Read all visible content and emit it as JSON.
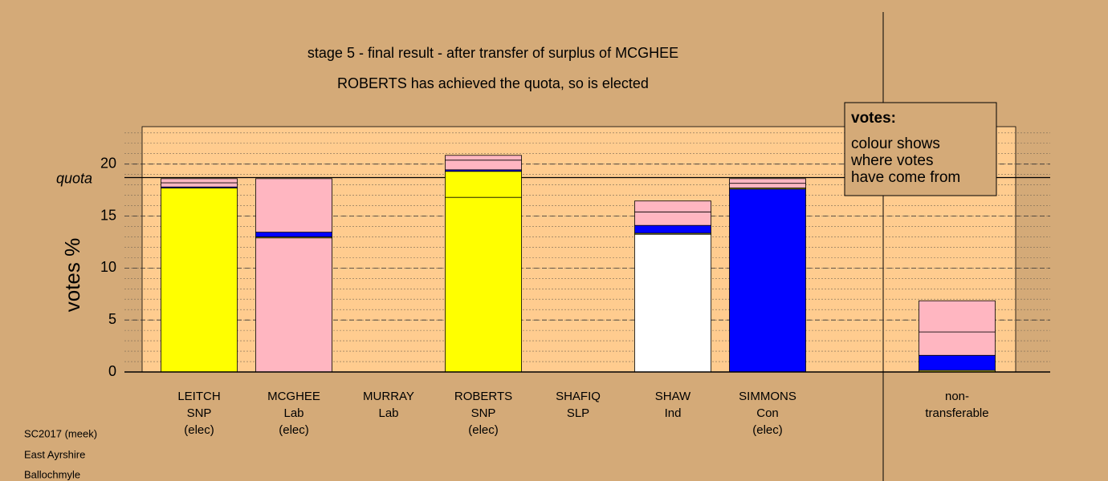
{
  "chart_data": {
    "type": "stacked_bar",
    "title": "stage 5 - final result - after transfer of surplus of MCGHEE",
    "subtitle": "ROBERTS has achieved the quota, so is elected",
    "y_label": "votes %",
    "ylim": [
      0,
      23.6
    ],
    "yticks": [
      0,
      5,
      10,
      15,
      20
    ],
    "minor_grid_step": 1,
    "quota": {
      "value": 18.7,
      "label": "quota"
    },
    "bars": [
      {
        "label": [
          "LEITCH",
          "SNP",
          "(elec)"
        ],
        "segments": [
          {
            "value": 17.7,
            "color": "#ffff00"
          },
          {
            "value": 0.1,
            "color": "#0000ff"
          },
          {
            "value": 0.4,
            "color": "#ffb6c1"
          },
          {
            "value": 0.4,
            "color": "#ffb6c1"
          }
        ]
      },
      {
        "label": [
          "MCGHEE",
          "Lab",
          "(elec)"
        ],
        "segments": [
          {
            "value": 12.9,
            "color": "#ffb6c1"
          },
          {
            "value": 0.1,
            "color": "#ffff00"
          },
          {
            "value": 0.45,
            "color": "#0000ff"
          },
          {
            "value": 5.15,
            "color": "#ffb6c1"
          }
        ]
      },
      {
        "label": [
          "MURRAY",
          "Lab"
        ],
        "segments": []
      },
      {
        "label": [
          "ROBERTS",
          "SNP",
          "(elec)"
        ],
        "segments": [
          {
            "value": 16.8,
            "color": "#ffff00"
          },
          {
            "value": 2.5,
            "color": "#ffff00"
          },
          {
            "value": 0.15,
            "color": "#0000ff"
          },
          {
            "value": 0.93,
            "color": "#ffb6c1"
          },
          {
            "value": 0.46,
            "color": "#ffb6c1"
          }
        ]
      },
      {
        "label": [
          "SHAFIQ",
          "SLP"
        ],
        "segments": []
      },
      {
        "label": [
          "SHAW",
          "Ind"
        ],
        "segments": [
          {
            "value": 13.25,
            "color": "#ffffff"
          },
          {
            "value": 0.1,
            "color": "#ffff00"
          },
          {
            "value": 0.75,
            "color": "#0000ff"
          },
          {
            "value": 1.3,
            "color": "#ffb6c1"
          },
          {
            "value": 1.05,
            "color": "#ffb6c1"
          }
        ]
      },
      {
        "label": [
          "SIMMONS",
          "Con",
          "(elec)"
        ],
        "segments": [
          {
            "value": 17.6,
            "color": "#0000ff"
          },
          {
            "value": 0.1,
            "color": "#ffff00"
          },
          {
            "value": 0.45,
            "color": "#ffb6c1"
          },
          {
            "value": 0.45,
            "color": "#ffb6c1"
          }
        ]
      }
    ],
    "nontransferable": {
      "label": [
        "non-",
        "transferable"
      ],
      "segments": [
        {
          "value": 0.15,
          "color": "#ffff00"
        },
        {
          "value": 1.45,
          "color": "#0000ff"
        },
        {
          "value": 2.25,
          "color": "#ffb6c1"
        },
        {
          "value": 3.0,
          "color": "#ffb6c1"
        }
      ]
    },
    "legend": {
      "title": "votes:",
      "lines": [
        "colour shows",
        "where votes",
        "have come from"
      ]
    },
    "footer": [
      "SC2017 (meek)",
      "East Ayrshire",
      "Ballochmyle"
    ]
  }
}
